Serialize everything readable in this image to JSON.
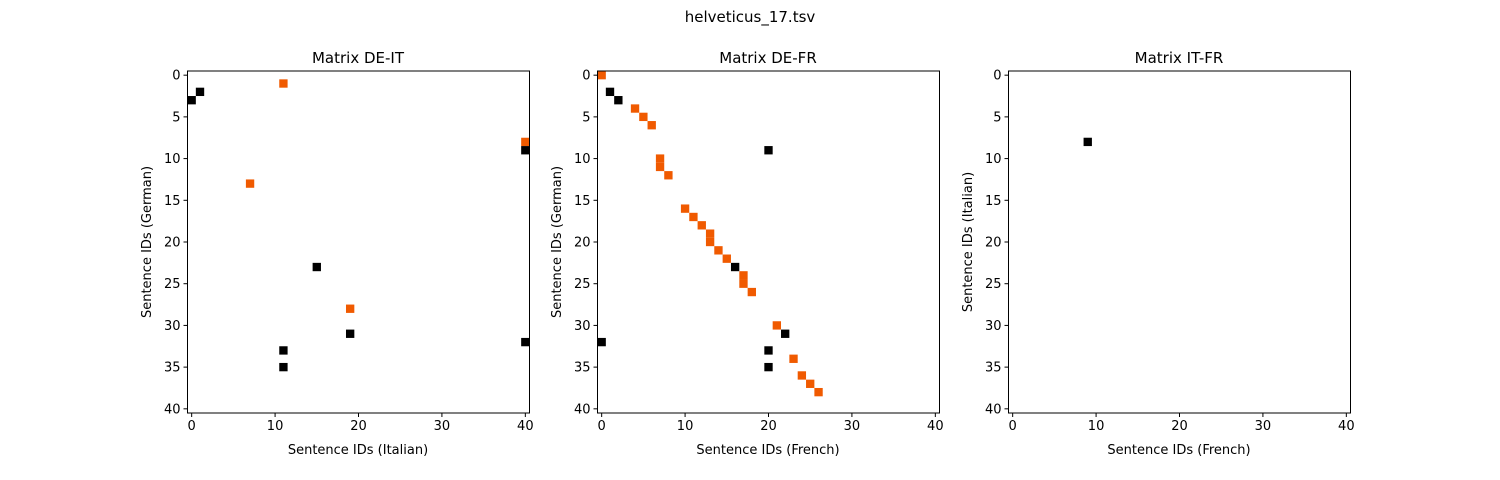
{
  "figure_title": "helveticus_17.tsv",
  "chart_data": [
    {
      "type": "heatmap",
      "title": "Matrix DE-IT",
      "xlabel": "Sentence IDs (Italian)",
      "ylabel": "Sentence IDs (German)",
      "xlim": [
        -0.5,
        40.5
      ],
      "ylim": [
        40.5,
        -0.5
      ],
      "xticks": [
        0,
        10,
        20,
        30,
        40
      ],
      "yticks": [
        0,
        5,
        10,
        15,
        20,
        25,
        30,
        35,
        40
      ],
      "grid": false,
      "cell_colors": {
        "orange": "#f05a00",
        "black": "#000000"
      },
      "cells": [
        {
          "x": 0,
          "y": 3,
          "c": "black"
        },
        {
          "x": 1,
          "y": 2,
          "c": "black"
        },
        {
          "x": 11,
          "y": 1,
          "c": "orange"
        },
        {
          "x": 40,
          "y": 8,
          "c": "orange"
        },
        {
          "x": 40,
          "y": 9,
          "c": "black"
        },
        {
          "x": 7,
          "y": 13,
          "c": "orange"
        },
        {
          "x": 15,
          "y": 23,
          "c": "black"
        },
        {
          "x": 19,
          "y": 28,
          "c": "orange"
        },
        {
          "x": 19,
          "y": 31,
          "c": "black"
        },
        {
          "x": 40,
          "y": 32,
          "c": "black"
        },
        {
          "x": 11,
          "y": 33,
          "c": "black"
        },
        {
          "x": 11,
          "y": 35,
          "c": "black"
        }
      ]
    },
    {
      "type": "heatmap",
      "title": "Matrix DE-FR",
      "xlabel": "Sentence IDs (French)",
      "ylabel": "Sentence IDs (German)",
      "xlim": [
        -0.5,
        40.5
      ],
      "ylim": [
        40.5,
        -0.5
      ],
      "xticks": [
        0,
        10,
        20,
        30,
        40
      ],
      "yticks": [
        0,
        5,
        10,
        15,
        20,
        25,
        30,
        35,
        40
      ],
      "grid": false,
      "cell_colors": {
        "orange": "#f05a00",
        "black": "#000000"
      },
      "cells": [
        {
          "x": 0,
          "y": 0,
          "c": "orange"
        },
        {
          "x": 1,
          "y": 2,
          "c": "black"
        },
        {
          "x": 2,
          "y": 3,
          "c": "black"
        },
        {
          "x": 4,
          "y": 4,
          "c": "orange"
        },
        {
          "x": 5,
          "y": 5,
          "c": "orange"
        },
        {
          "x": 6,
          "y": 6,
          "c": "orange"
        },
        {
          "x": 20,
          "y": 9,
          "c": "black"
        },
        {
          "x": 7,
          "y": 10,
          "c": "orange"
        },
        {
          "x": 7,
          "y": 11,
          "c": "orange"
        },
        {
          "x": 8,
          "y": 12,
          "c": "orange"
        },
        {
          "x": 10,
          "y": 16,
          "c": "orange"
        },
        {
          "x": 11,
          "y": 17,
          "c": "orange"
        },
        {
          "x": 12,
          "y": 18,
          "c": "orange"
        },
        {
          "x": 13,
          "y": 19,
          "c": "orange"
        },
        {
          "x": 13,
          "y": 20,
          "c": "orange"
        },
        {
          "x": 14,
          "y": 21,
          "c": "orange"
        },
        {
          "x": 15,
          "y": 22,
          "c": "orange"
        },
        {
          "x": 16,
          "y": 23,
          "c": "black"
        },
        {
          "x": 17,
          "y": 24,
          "c": "orange"
        },
        {
          "x": 17,
          "y": 25,
          "c": "orange"
        },
        {
          "x": 18,
          "y": 26,
          "c": "orange"
        },
        {
          "x": 21,
          "y": 30,
          "c": "orange"
        },
        {
          "x": 22,
          "y": 31,
          "c": "black"
        },
        {
          "x": 0,
          "y": 32,
          "c": "black"
        },
        {
          "x": 20,
          "y": 33,
          "c": "black"
        },
        {
          "x": 23,
          "y": 34,
          "c": "orange"
        },
        {
          "x": 20,
          "y": 35,
          "c": "black"
        },
        {
          "x": 24,
          "y": 36,
          "c": "orange"
        },
        {
          "x": 25,
          "y": 37,
          "c": "orange"
        },
        {
          "x": 26,
          "y": 38,
          "c": "orange"
        }
      ]
    },
    {
      "type": "heatmap",
      "title": "Matrix IT-FR",
      "xlabel": "Sentence IDs (French)",
      "ylabel": "Sentence IDs (Italian)",
      "xlim": [
        -0.5,
        40.5
      ],
      "ylim": [
        40.5,
        -0.5
      ],
      "xticks": [
        0,
        10,
        20,
        30,
        40
      ],
      "yticks": [
        0,
        5,
        10,
        15,
        20,
        25,
        30,
        35,
        40
      ],
      "grid": false,
      "cell_colors": {
        "orange": "#f05a00",
        "black": "#000000"
      },
      "cells": [
        {
          "x": 9,
          "y": 8,
          "c": "black"
        }
      ]
    }
  ]
}
